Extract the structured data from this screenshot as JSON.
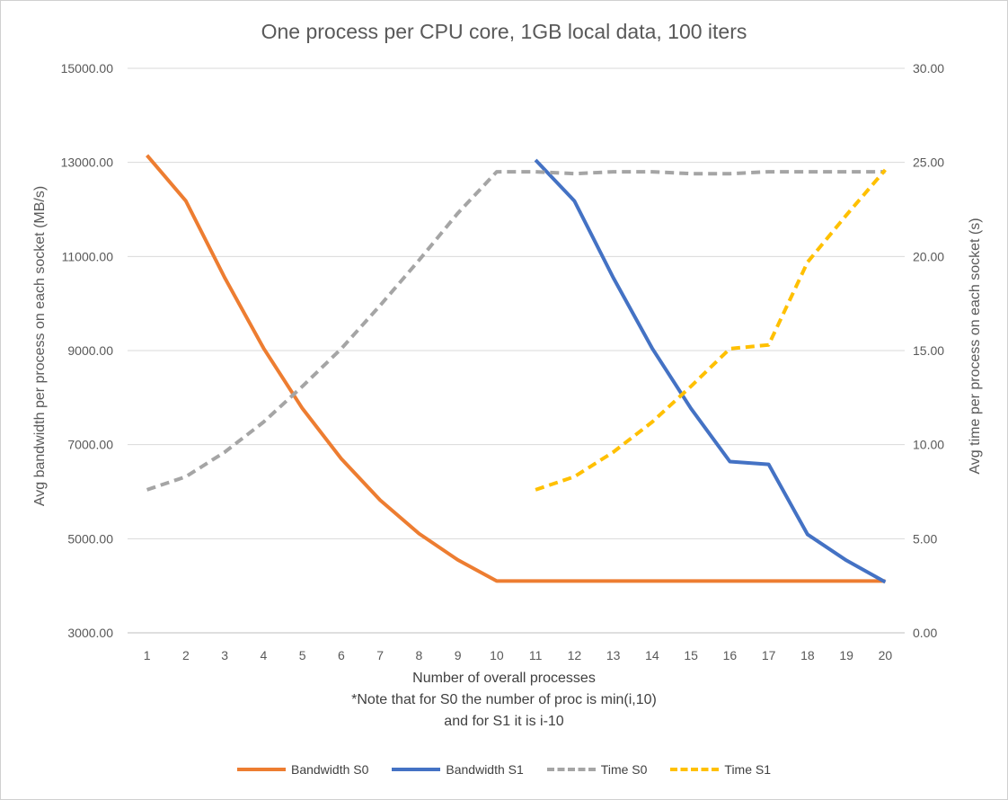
{
  "chart_data": {
    "type": "line",
    "title": "One process per CPU core, 1GB local data, 100 iters",
    "xlabel_lines": [
      "Number of overall processes",
      "*Note that for S0 the number of proc is min(i,10)",
      "and for S1 it is i-10"
    ],
    "ylabel": "Avg bandwidth per process on each socket (MB/s)",
    "y2label": "Avg time  per process on each socket (s)",
    "categories": [
      "1",
      "2",
      "3",
      "4",
      "5",
      "6",
      "7",
      "8",
      "9",
      "10",
      "11",
      "12",
      "13",
      "14",
      "15",
      "16",
      "17",
      "18",
      "19",
      "20"
    ],
    "ylim": [
      3000,
      15000
    ],
    "yticks": [
      "3000.00",
      "5000.00",
      "7000.00",
      "9000.00",
      "11000.00",
      "13000.00",
      "15000.00"
    ],
    "y2lim": [
      0,
      30
    ],
    "y2ticks": [
      "0.00",
      "5.00",
      "10.00",
      "15.00",
      "20.00",
      "25.00",
      "30.00"
    ],
    "grid": true,
    "legend_position": "bottom",
    "series": [
      {
        "name": "Bandwidth S0",
        "axis": "left",
        "color": "#ED7D31",
        "dash": false,
        "values": [
          13150,
          12180,
          10550,
          9050,
          7770,
          6700,
          5820,
          5110,
          4550,
          4100,
          4100,
          4100,
          4100,
          4100,
          4100,
          4100,
          4100,
          4100,
          4100,
          4100
        ]
      },
      {
        "name": "Bandwidth S1",
        "axis": "left",
        "color": "#4472C4",
        "dash": false,
        "values": [
          null,
          null,
          null,
          null,
          null,
          null,
          null,
          null,
          null,
          null,
          13050,
          12180,
          10550,
          9050,
          7770,
          6640,
          6580,
          5090,
          4540,
          4080
        ]
      },
      {
        "name": "Time S0",
        "axis": "right",
        "color": "#A5A5A5",
        "dash": true,
        "values": [
          7.6,
          8.3,
          9.6,
          11.2,
          13.1,
          15.1,
          17.4,
          19.8,
          22.3,
          24.5,
          24.5,
          24.4,
          24.5,
          24.5,
          24.4,
          24.4,
          24.5,
          24.5,
          24.5,
          24.5
        ]
      },
      {
        "name": "Time S1",
        "axis": "right",
        "color": "#FFC000",
        "dash": true,
        "values": [
          null,
          null,
          null,
          null,
          null,
          null,
          null,
          null,
          null,
          null,
          7.6,
          8.3,
          9.6,
          11.2,
          13.1,
          15.1,
          15.3,
          19.7,
          22.2,
          24.6
        ]
      }
    ]
  }
}
